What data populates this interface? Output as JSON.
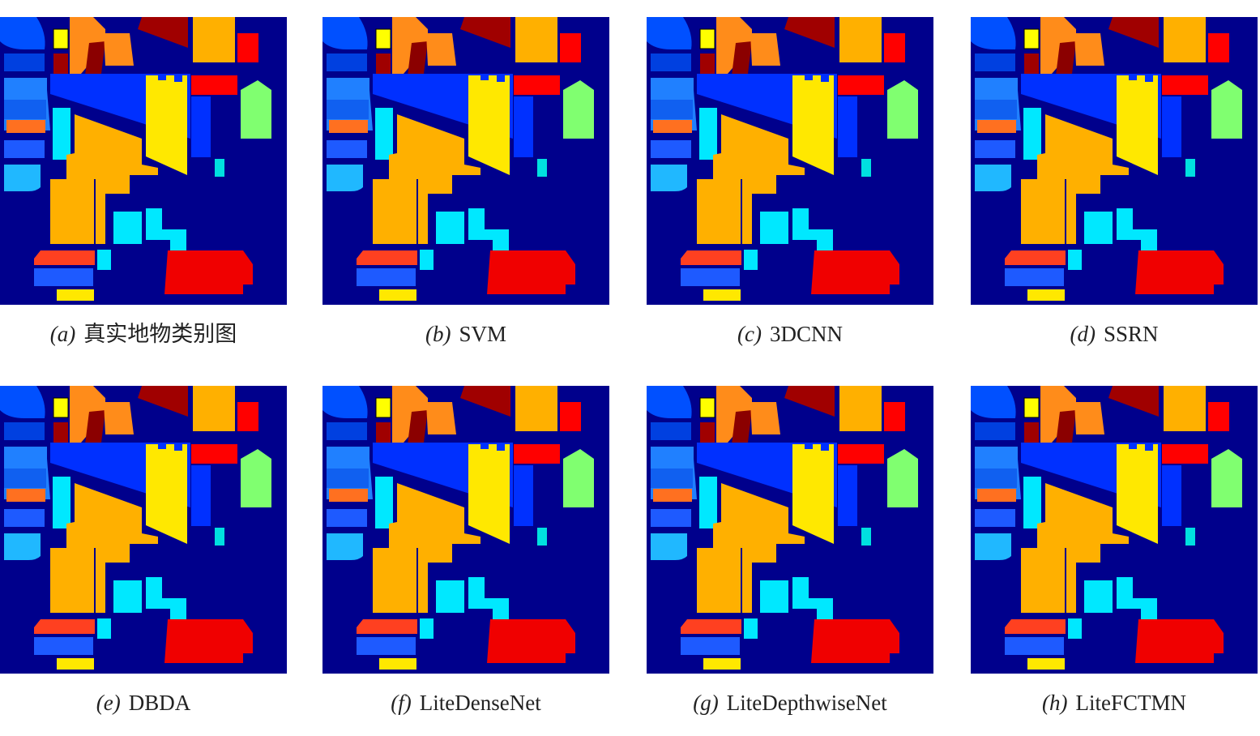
{
  "panels": [
    {
      "label": "(a)",
      "title": "真实地物类别图"
    },
    {
      "label": "(b)",
      "title": "SVM"
    },
    {
      "label": "(c)",
      "title": "3DCNN"
    },
    {
      "label": "(d)",
      "title": "SSRN"
    },
    {
      "label": "(e)",
      "title": "DBDA"
    },
    {
      "label": "(f)",
      "title": "LiteDenseNet"
    },
    {
      "label": "(g)",
      "title": "LiteDepthwiseNet"
    },
    {
      "label": "(h)",
      "title": "LiteFCTMN"
    }
  ]
}
